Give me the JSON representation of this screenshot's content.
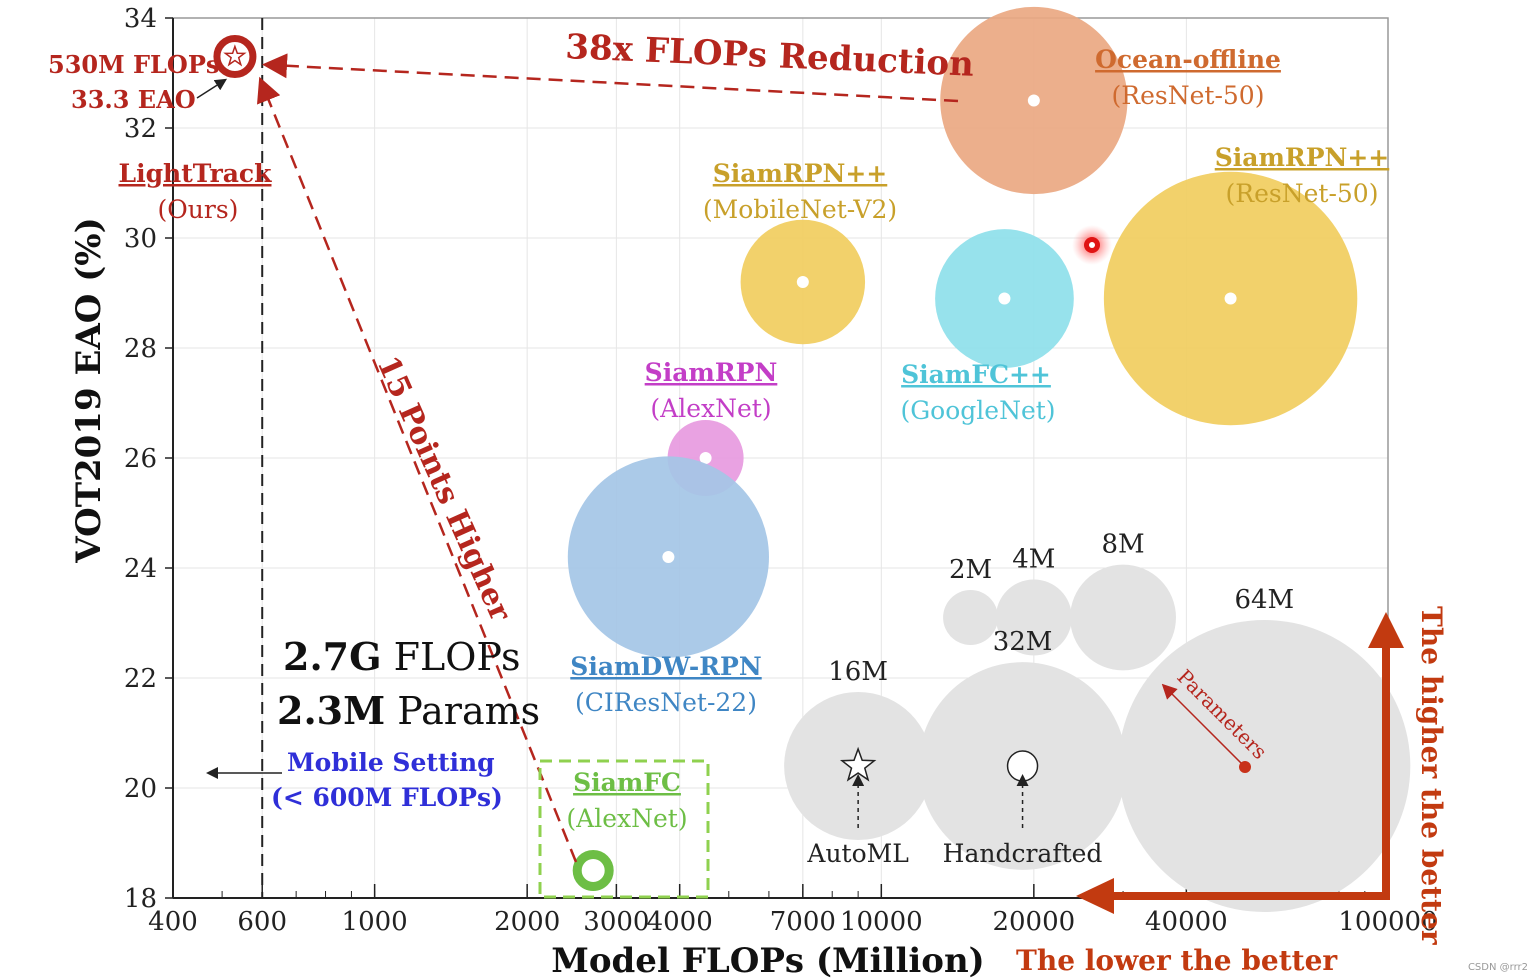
{
  "chart_data": {
    "type": "scatter",
    "subtitle": "",
    "xlabel": "Model FLOPs (Million)",
    "ylabel": "VOT2019  EAO (%)",
    "xscale": "log",
    "xlim": [
      400,
      100000
    ],
    "ylim": [
      18,
      34
    ],
    "xticks": [
      {
        "value": 400,
        "label": "400"
      },
      {
        "value": 600,
        "label": "600"
      },
      {
        "value": 1000,
        "label": "1000"
      },
      {
        "value": 2000,
        "label": "2000"
      },
      {
        "value": 3000,
        "label": "3000"
      },
      {
        "value": 4000,
        "label": "4000"
      },
      {
        "value": 7000,
        "label": "7000"
      },
      {
        "value": 10000,
        "label": "10000"
      },
      {
        "value": 20000,
        "label": "20000"
      },
      {
        "value": 40000,
        "label": "40000"
      },
      {
        "value": 100000,
        "label": "100000"
      }
    ],
    "yticks": [
      18,
      20,
      22,
      24,
      26,
      28,
      30,
      32,
      34
    ],
    "grid": true,
    "reference_line": {
      "x": 600
    },
    "series": [
      {
        "name": "LightTrack",
        "sub": "(Ours)",
        "flops": 530,
        "eao": 33.3,
        "params_m": 1.97,
        "color": "#b5261e",
        "label_color": "#b5261e",
        "marker": "star"
      },
      {
        "name": "Ocean-offline",
        "sub": "(ResNet-50)",
        "flops": 20000,
        "eao": 32.5,
        "params_m": 25.9,
        "color": "#eaa882",
        "label_color": "#cf6a2f"
      },
      {
        "name": "SiamRPN++",
        "sub": "(MobileNet-V2)",
        "flops": 7000,
        "eao": 29.2,
        "params_m": 11.2,
        "color": "#f1cd5e",
        "label_color": "#c8a02a"
      },
      {
        "name": "SiamFC++",
        "sub": "(GoogleNet)",
        "flops": 17500,
        "eao": 28.9,
        "params_m": 14.0,
        "color": "#8ee0ea",
        "label_color": "#4fc4d8"
      },
      {
        "name": "SiamRPN++",
        "sub": "(ResNet-50)",
        "flops": 48900,
        "eao": 28.9,
        "params_m": 48.0,
        "color": "#f1cd5e",
        "label_color": "#c8a02a"
      },
      {
        "name": "SiamRPN",
        "sub": "(AlexNet)",
        "flops": 4500,
        "eao": 26.0,
        "params_m": 4.0,
        "color": "#e79ae0",
        "label_color": "#c33ec7"
      },
      {
        "name": "SiamDW-RPN",
        "sub": "(CIResNet-22)",
        "flops": 3800,
        "eao": 24.2,
        "params_m": 30.0,
        "color": "#a4c6e6",
        "label_color": "#3f86c4"
      },
      {
        "name": "SiamFC",
        "sub": "(AlexNet)",
        "flops": 2700,
        "eao": 18.5,
        "params_m": 2.3,
        "color": "#6dbe45",
        "label_color": "#6dbe45",
        "marker": "ring"
      }
    ],
    "size_legend": [
      {
        "label": "2M",
        "flops": 15000,
        "eao": 23.1
      },
      {
        "label": "4M",
        "flops": 20000,
        "eao": 23.1
      },
      {
        "label": "8M",
        "flops": 30000,
        "eao": 23.1
      },
      {
        "label": "16M",
        "flops": 9000,
        "eao": 20.4,
        "inner": "star",
        "caption": "AutoML"
      },
      {
        "label": "32M",
        "flops": 19000,
        "eao": 20.4,
        "inner": "circle",
        "caption": "Handcrafted"
      },
      {
        "label": "64M",
        "flops": 57000,
        "eao": 20.4,
        "inner": "dot"
      }
    ],
    "annotations": {
      "flops_reduction": "38x FLOPs Reduction",
      "points_higher": "15 Points Higher",
      "lt_flops": "530M FLOPs",
      "lt_eao": "33.3 EAO",
      "siamfc_flops_bold": "2.7G",
      "siamfc_flops_rest": " FLOPs",
      "siamfc_params_bold": "2.3M",
      "siamfc_params_rest": " Params",
      "mobile_setting": "Mobile Setting",
      "mobile_flops": "(< 600M FLOPs)",
      "parameters": "Parameters",
      "higher_better": "The higher the better",
      "lower_better": "The lower the better"
    },
    "colors": {
      "accent_red": "#b5261e",
      "grid": "#e6e6e6",
      "legend_gray": "#e3e3e3",
      "mobile_blue": "#2f2fd8"
    }
  },
  "watermark": "CSDN @rrr2"
}
